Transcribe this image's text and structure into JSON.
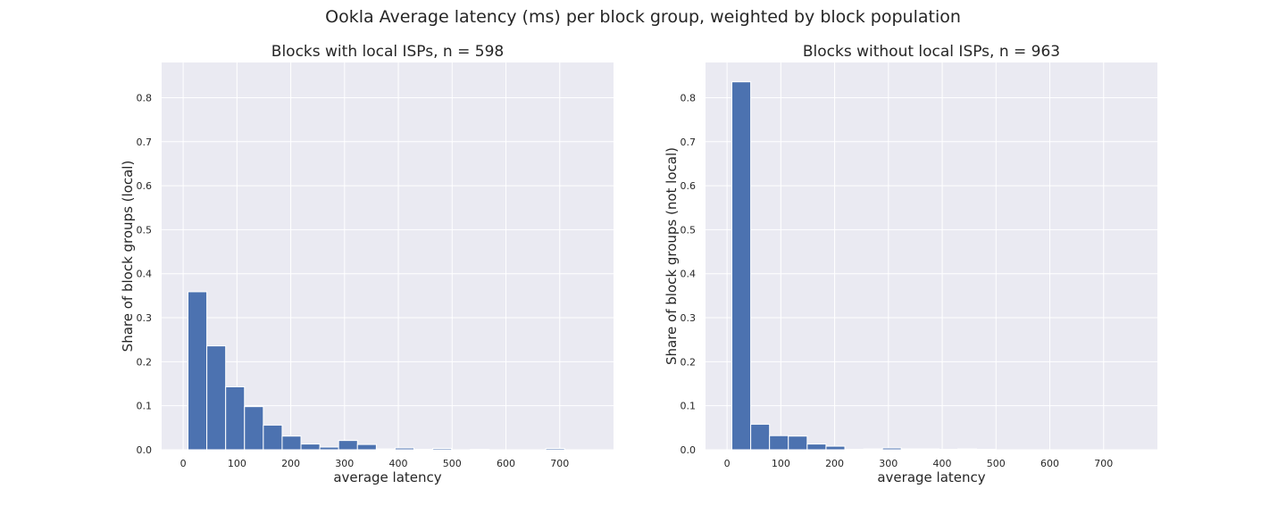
{
  "figure": {
    "title": "Ookla Average latency (ms) per block group, weighted by block population"
  },
  "colors": {
    "bar": "#4c72b0",
    "bar_edge": "#ffffff",
    "plot_background": "#eaeaf2",
    "grid": "#ffffff"
  },
  "chart_data": [
    {
      "type": "bar",
      "title": "Blocks with local ISPs, n = 598",
      "xlabel": "average latency",
      "ylabel": "Share of block groups (local)",
      "xlim": [
        -40,
        800
      ],
      "ylim": [
        0,
        0.88
      ],
      "xticks": [
        0,
        100,
        200,
        300,
        400,
        500,
        600,
        700
      ],
      "yticks": [
        0.0,
        0.1,
        0.2,
        0.3,
        0.4,
        0.5,
        0.6,
        0.7,
        0.8
      ],
      "ytick_labels": [
        "0.0",
        "0.1",
        "0.2",
        "0.3",
        "0.4",
        "0.5",
        "0.6",
        "0.7",
        "0.8"
      ],
      "grid": true,
      "bin_edges": [
        9,
        44,
        79,
        114,
        149,
        184,
        219,
        254,
        289,
        324,
        359,
        394,
        429,
        464,
        499,
        534,
        569,
        604,
        639,
        674,
        709,
        744
      ],
      "values": [
        0.359,
        0.236,
        0.143,
        0.098,
        0.056,
        0.031,
        0.013,
        0.006,
        0.021,
        0.012,
        0.002,
        0.004,
        0.001,
        0.003,
        0.0,
        0.001,
        0.0,
        0.0,
        0.0,
        0.003,
        0.0
      ]
    },
    {
      "type": "bar",
      "title": "Blocks without local ISPs, n = 963",
      "xlabel": "average latency",
      "ylabel": "Share of block groups (not local)",
      "xlim": [
        -40,
        800
      ],
      "ylim": [
        0,
        0.88
      ],
      "xticks": [
        0,
        100,
        200,
        300,
        400,
        500,
        600,
        700
      ],
      "yticks": [
        0.0,
        0.1,
        0.2,
        0.3,
        0.4,
        0.5,
        0.6,
        0.7,
        0.8
      ],
      "ytick_labels": [
        "0.0",
        "0.1",
        "0.2",
        "0.3",
        "0.4",
        "0.5",
        "0.6",
        "0.7",
        "0.8"
      ],
      "grid": true,
      "bin_edges": [
        9,
        44,
        79,
        114,
        149,
        184,
        219,
        254,
        289,
        324,
        359,
        394,
        429,
        464,
        499,
        534,
        569,
        604,
        639,
        674,
        709,
        744
      ],
      "values": [
        0.836,
        0.058,
        0.032,
        0.031,
        0.013,
        0.008,
        0.001,
        0.002,
        0.004,
        0.002,
        0.002,
        0.001,
        0.002,
        0.001,
        0.0,
        0.0,
        0.0,
        0.0,
        0.0,
        0.0,
        0.0
      ]
    }
  ]
}
